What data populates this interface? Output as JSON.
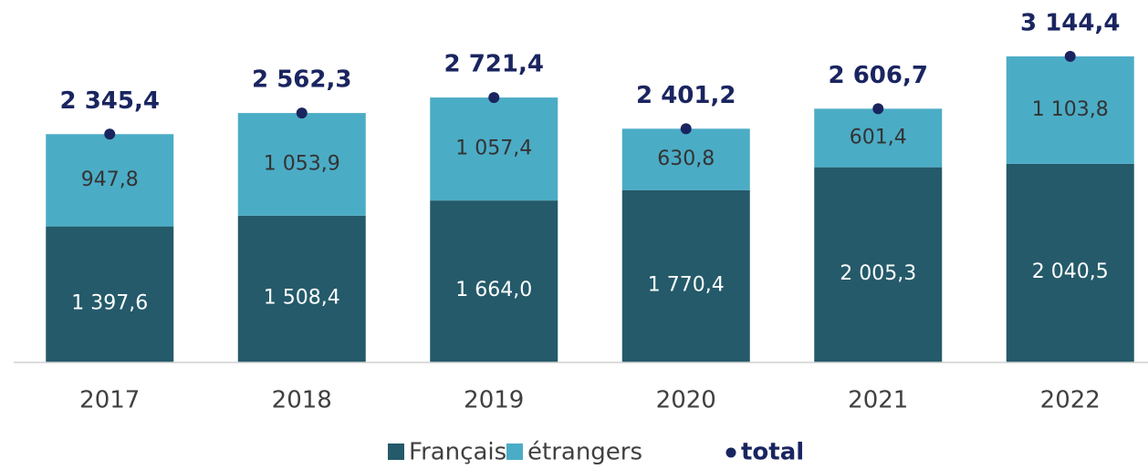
{
  "chart_data": {
    "type": "stacked_bar",
    "categories": [
      "2017",
      "2018",
      "2019",
      "2020",
      "2021",
      "2022"
    ],
    "series": [
      {
        "name": "Français",
        "color": "#245a6a",
        "values": [
          1397.6,
          1508.4,
          1664.0,
          1770.4,
          2005.3,
          2040.5
        ],
        "value_labels": [
          "1 397,6",
          "1 508,4",
          "1 664,0",
          "1 770,4",
          "2 005,3",
          "2 040,5"
        ]
      },
      {
        "name": "étrangers",
        "color": "#4bacc6",
        "values": [
          947.8,
          1053.9,
          1057.4,
          630.8,
          601.4,
          1103.8
        ],
        "value_labels": [
          "947,8",
          "1 053,9",
          "1 057,4",
          "630,8",
          "601,4",
          "1 103,8"
        ]
      },
      {
        "name": "total",
        "color": "#1a2560",
        "marker": "dot",
        "values": [
          2345.4,
          2562.3,
          2721.4,
          2401.2,
          2606.7,
          3144.4
        ],
        "value_labels": [
          "2 345,4",
          "2 562,3",
          "2 721,4",
          "2 401,2",
          "2 606,7",
          "3 144,4"
        ]
      }
    ],
    "ylim": [
      0,
      3700
    ],
    "grid": false,
    "legend": "bottom"
  }
}
